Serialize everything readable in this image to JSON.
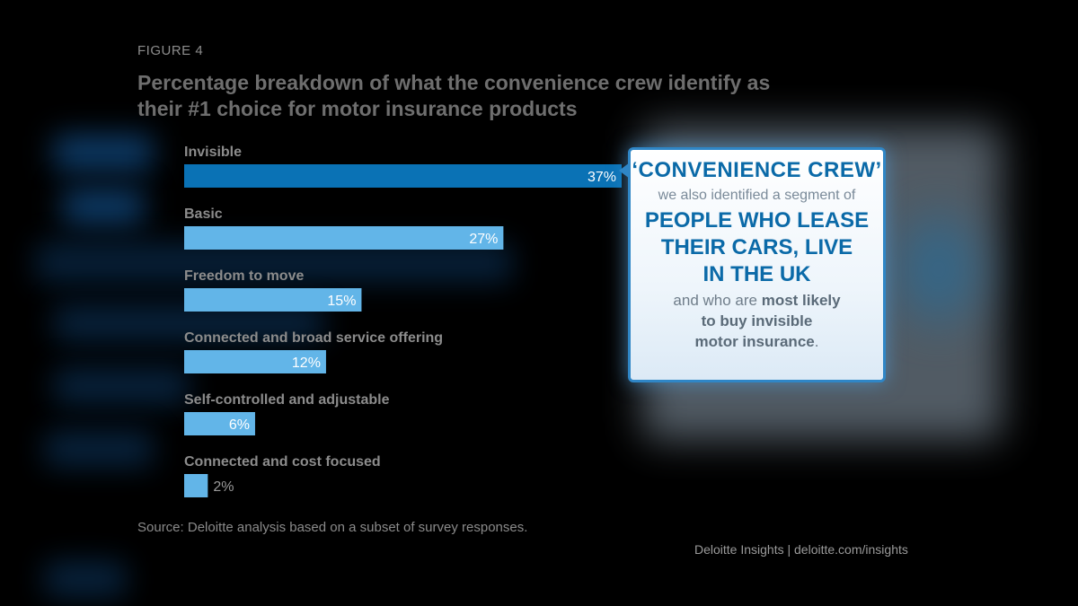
{
  "figure_label": "FIGURE 4",
  "title": "Percentage breakdown of what the convenience crew identify as their #1 choice for motor insurance products",
  "chart_data": {
    "type": "bar",
    "orientation": "horizontal",
    "categories": [
      "Invisible",
      "Basic",
      "Freedom to move",
      "Connected and broad service offering",
      "Self-controlled and adjustable",
      "Connected and cost focused"
    ],
    "values": [
      37,
      27,
      15,
      12,
      6,
      2
    ],
    "value_labels": [
      "37%",
      "27%",
      "15%",
      "12%",
      "6%",
      "2%"
    ],
    "unit": "%",
    "highlight_index": 0,
    "colors": {
      "highlight": "#0a72b5",
      "default": "#62b5e8",
      "label_text": "#ffffff",
      "label_outside": "#9a9a9a",
      "category_text": "#8c8c8c"
    },
    "xlim": [
      0,
      37
    ],
    "grid": false,
    "legend": "none"
  },
  "callout": {
    "heading": "‘CONVENIENCE CREW’",
    "sub": "we also identified a segment of",
    "highlight_lines": [
      "PEOPLE WHO LEASE",
      "THEIR CARS, LIVE",
      "IN THE UK"
    ],
    "body_line1": "and who are",
    "body_line1_bold": "most likely",
    "body_line2_bold": "to buy invisible",
    "body_line3_bold": "motor insurance",
    "body_line3_end": "."
  },
  "source": "Source: Deloitte analysis based on a subset of survey responses.",
  "credit": "Deloitte Insights | deloitte.com/insights"
}
